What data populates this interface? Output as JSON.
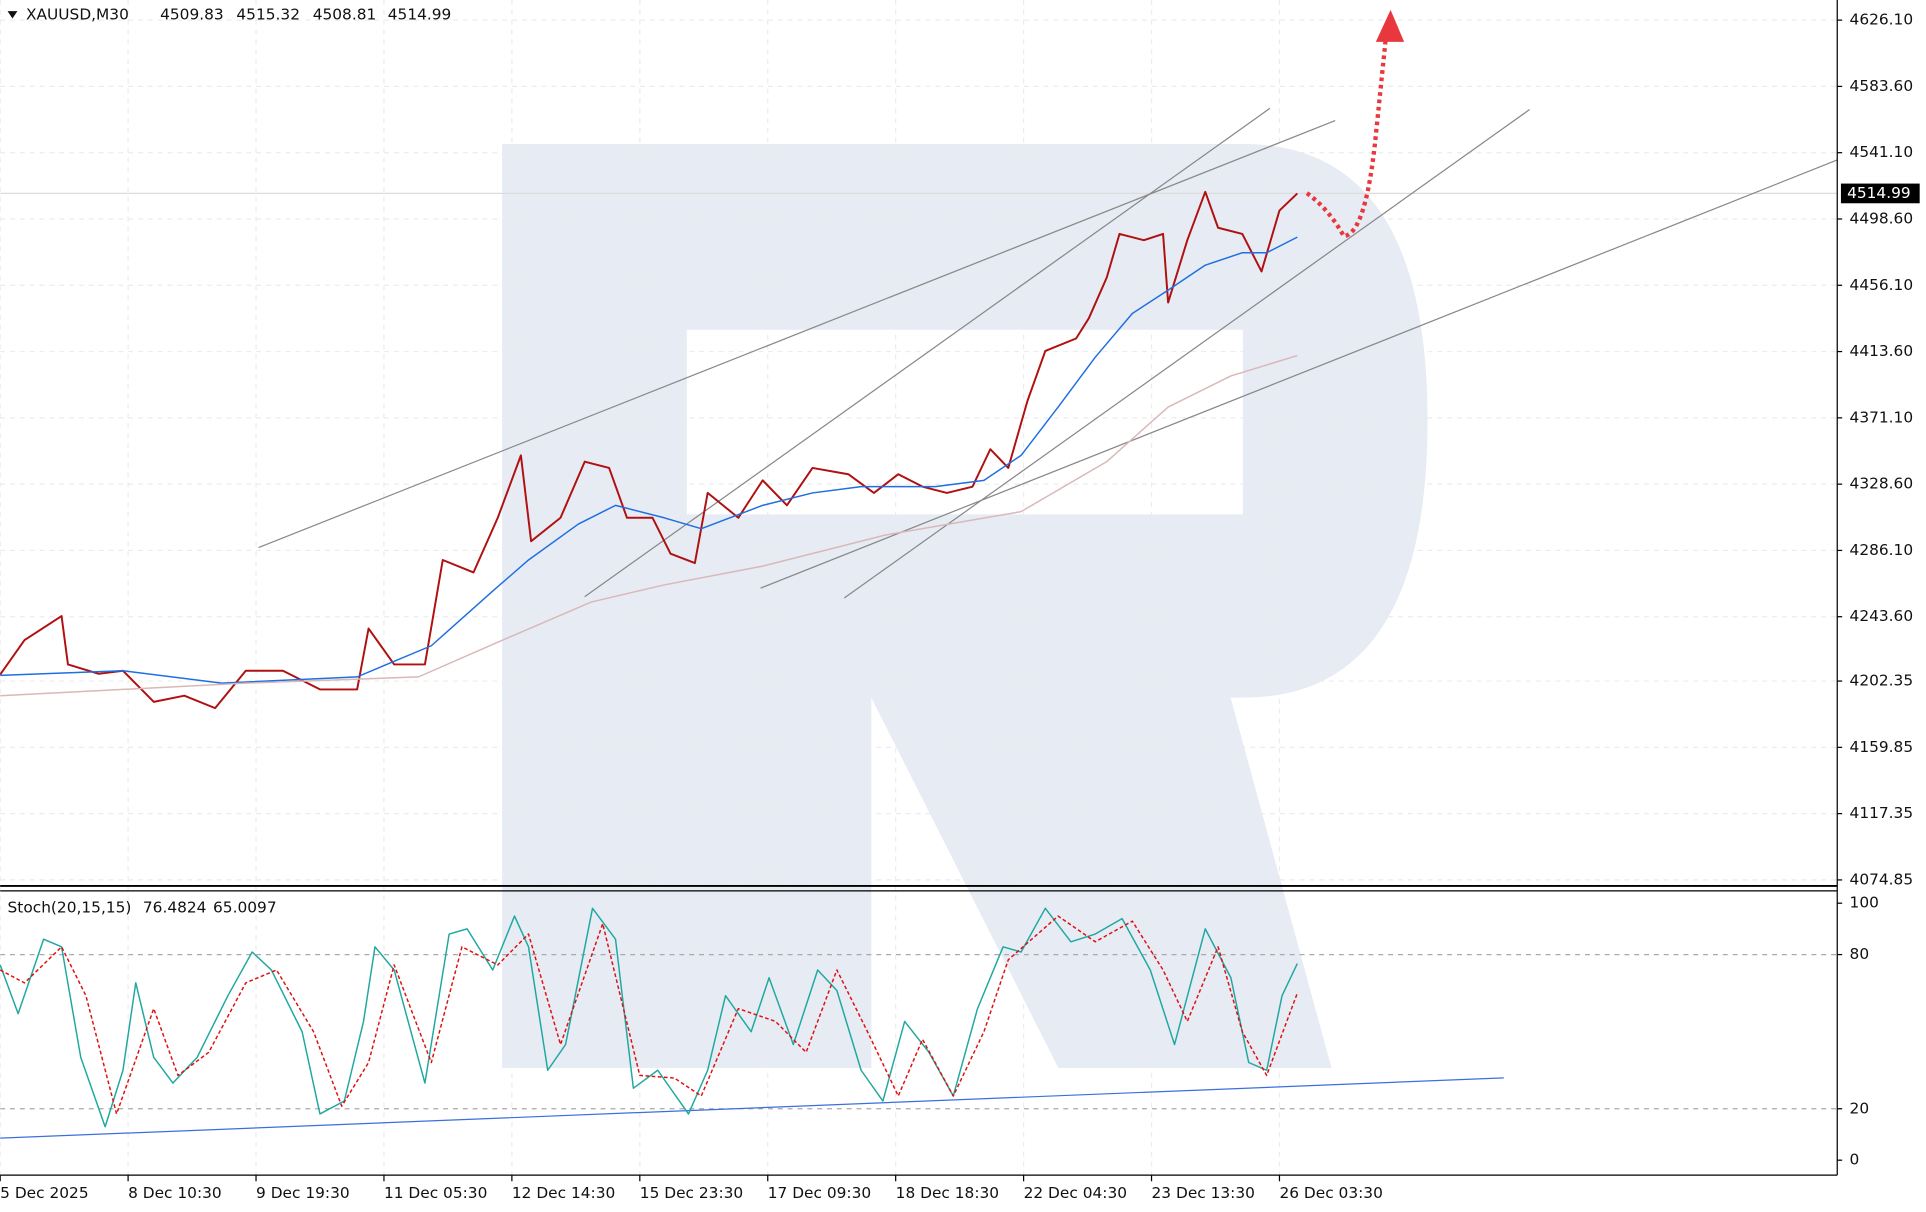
{
  "chart_data": [
    {
      "type": "line",
      "title": "XAUUSD,M30",
      "ohlc": [
        4509.83,
        4515.32,
        4508.81,
        4514.99
      ],
      "last_price": 4514.99,
      "grid": true,
      "xlim": [
        0,
        143.6
      ],
      "ylim": [
        4071,
        4639
      ],
      "yticks": [
        {
          "value": 4626.1,
          "label": "4626.10"
        },
        {
          "value": 4583.6,
          "label": "4583.60"
        },
        {
          "value": 4541.1,
          "label": "4541.10"
        },
        {
          "value": 4498.6,
          "label": "4498.60"
        },
        {
          "value": 4456.1,
          "label": "4456.10"
        },
        {
          "value": 4413.6,
          "label": "4413.60"
        },
        {
          "value": 4371.1,
          "label": "4371.10"
        },
        {
          "value": 4328.6,
          "label": "4328.60"
        },
        {
          "value": 4286.1,
          "label": "4286.10"
        },
        {
          "value": 4243.6,
          "label": "4243.60"
        },
        4202.35,
        4159.85,
        4117.35,
        4074.85
      ],
      "series": [
        {
          "color": "#b01010",
          "x": [
            0,
            1.9,
            4.8,
            5.3,
            7.7,
            9.6,
            12,
            14.4,
            16.8,
            19.2,
            22.1,
            25,
            27.9,
            28.8,
            30.8,
            33.2,
            34.6,
            37,
            38.9,
            40.7,
            41.5,
            43.8,
            45.7,
            47.6,
            49,
            51,
            52.4,
            54.3,
            55.3,
            57.7,
            59.6,
            61.5,
            63.5,
            66.3,
            68.3,
            70.2,
            72.1,
            74,
            76,
            77.4,
            78.8,
            80.3,
            81.7,
            84.1,
            85.1,
            86.5,
            87.5,
            89.4,
            90.9,
            91.3,
            92.8,
            94.2,
            95.2,
            97.1,
            98.6,
            100,
            101.4
          ],
          "values": [
            4206.5,
            4228.6,
            4244,
            4213,
            4207,
            4209,
            4189,
            4193,
            4185,
            4209,
            4209,
            4197,
            4197,
            4236,
            4213,
            4213,
            4280,
            4272,
            4307,
            4347,
            4292,
            4307,
            4343,
            4339,
            4307,
            4307,
            4284,
            4278,
            4323,
            4307,
            4331,
            4315,
            4339,
            4335,
            4323,
            4335,
            4327,
            4323,
            4327,
            4351,
            4339,
            4382,
            4414,
            4422,
            4435,
            4461,
            4489,
            4485,
            4489,
            4445,
            4485,
            4516,
            4493,
            4489,
            4465,
            4504,
            4514.99
          ]
        },
        {
          "color": "#1e6fe0",
          "x": [
            0,
            9.6,
            17.3,
            27.9,
            33.7,
            38.5,
            41.3,
            45.2,
            48.1,
            51.9,
            54.8,
            59.6,
            63.5,
            67.3,
            73.1,
            76.9,
            79.8,
            82.7,
            85.6,
            88.5,
            91.3,
            94.2,
            97.1,
            99,
            101.4
          ],
          "values": [
            4206,
            4209,
            4201,
            4205,
            4225,
            4260,
            4280,
            4303,
            4315,
            4307,
            4300,
            4315,
            4323,
            4327,
            4327,
            4331,
            4347,
            4378,
            4410,
            4438,
            4453,
            4469,
            4477,
            4477,
            4487
          ]
        },
        {
          "color": "#d9b8b8",
          "x": [
            0,
            19.2,
            32.7,
            39.4,
            46.2,
            51.9,
            59.6,
            69.2,
            79.8,
            86.5,
            91.3,
            96.2,
            101.4
          ],
          "values": [
            4193,
            4201,
            4205,
            4229,
            4253,
            4264,
            4276,
            4296,
            4311,
            4343,
            4378,
            4398,
            4411
          ]
        }
      ]
    },
    {
      "type": "line",
      "title": "Stoch(20,15,15)",
      "readings": [
        76.4824,
        65.0097
      ],
      "xlim": [
        0,
        143.6
      ],
      "ylim": [
        -5.8,
        104.8
      ],
      "yticks": [
        100,
        80,
        20,
        0
      ],
      "xticks": [
        {
          "value": 0,
          "label": "5 Dec 2025"
        },
        {
          "value": 10,
          "label": "8 Dec 10:30"
        },
        {
          "value": 20,
          "label": "9 Dec 19:30"
        },
        {
          "value": 30,
          "label": "11 Dec 05:30"
        },
        {
          "value": 40,
          "label": "12 Dec 14:30"
        },
        {
          "value": 50,
          "label": "15 Dec 23:30"
        },
        {
          "value": 60,
          "label": "17 Dec 09:30"
        },
        {
          "value": 70,
          "label": "18 Dec 18:30"
        },
        {
          "value": 80,
          "label": "22 Dec 04:30"
        },
        {
          "value": 90,
          "label": "23 Dec 13:30"
        },
        {
          "value": 100,
          "label": "26 Dec 03:30"
        }
      ],
      "series": [
        {
          "color": "#20a8a0",
          "x": [
            0,
            1.4,
            3.4,
            4.8,
            6.3,
            8.2,
            9.6,
            10.6,
            12,
            13.5,
            15.4,
            17.8,
            19.7,
            21.2,
            23.6,
            25,
            26.9,
            28.4,
            29.3,
            30.8,
            33.2,
            35.1,
            36.5,
            38.5,
            40.2,
            41.3,
            42.8,
            44.2,
            46.3,
            48.1,
            49.5,
            51.4,
            53.8,
            55.3,
            56.7,
            58.7,
            60.1,
            62,
            63.9,
            65.4,
            67.3,
            69,
            70.7,
            72.6,
            74.5,
            76.4,
            78.4,
            79.8,
            81.7,
            83.7,
            85.6,
            87.7,
            89.9,
            91.8,
            94.2,
            96.2,
            97.6,
            99,
            100.2,
            101.4
          ],
          "values": [
            76,
            57,
            86,
            83,
            40,
            13,
            35,
            69,
            40,
            30,
            40,
            64,
            81,
            74,
            50,
            18,
            23,
            54,
            83,
            74,
            30,
            88,
            90,
            74,
            95,
            83,
            35,
            45,
            98,
            86,
            28,
            35,
            18,
            35,
            64,
            50,
            71,
            45,
            74,
            66,
            35,
            23,
            54,
            42,
            25,
            59,
            83,
            81,
            98,
            85,
            88,
            94,
            74,
            45,
            90,
            71,
            38,
            35,
            64,
            76.5
          ]
        },
        {
          "color": "#e01010",
          "dashed": true,
          "x": [
            0,
            1.9,
            4.8,
            6.7,
            9.1,
            12,
            13.9,
            16.3,
            19.2,
            21.6,
            24.5,
            26.7,
            28.8,
            30.8,
            33.7,
            36.1,
            38.9,
            41.3,
            43.8,
            47.1,
            50,
            52.7,
            54.8,
            57.7,
            60.6,
            63,
            65.4,
            67.8,
            70.2,
            72.1,
            74.5,
            76.9,
            78.8,
            82.7,
            85.6,
            88.5,
            90.9,
            92.8,
            95.2,
            97.1,
            99,
            101.4
          ],
          "values": [
            74,
            69,
            83,
            64,
            18,
            59,
            33,
            42,
            69,
            74,
            50,
            21,
            38,
            76,
            38,
            83,
            76,
            88,
            45,
            92,
            33,
            32,
            25,
            59,
            54,
            42,
            74,
            50,
            25,
            47,
            25,
            50,
            78,
            95,
            85,
            93,
            74,
            54,
            83,
            50,
            33,
            65
          ]
        }
      ]
    }
  ]
}
